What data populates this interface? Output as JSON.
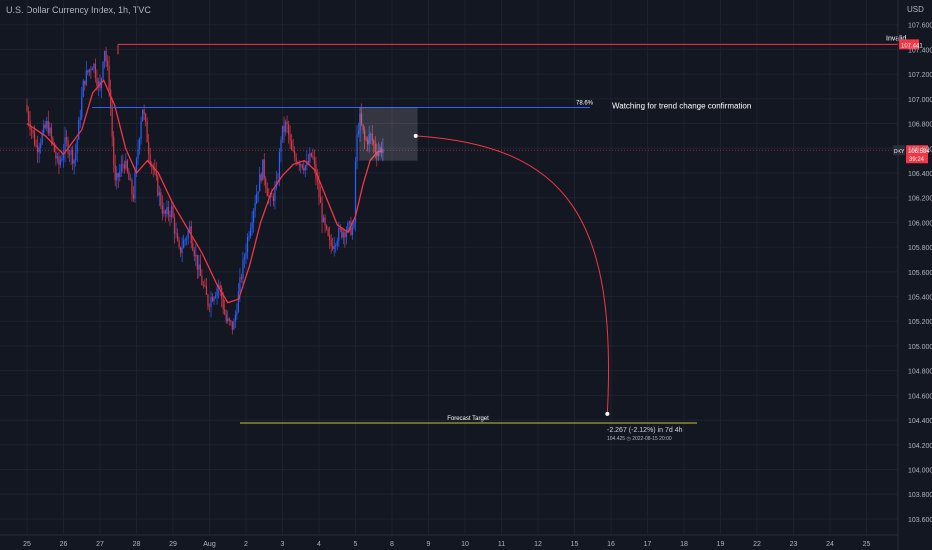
{
  "symbol_header": "U.S. Dollar Currency Index, 1h, TVC",
  "currency": "USD",
  "colors": {
    "background": "#131722",
    "grid": "#1e222d",
    "candle_up": "#2962ff",
    "candle_down": "#d93849",
    "ma_line": "#f23645",
    "fib_line": "#2962ff",
    "invalid_line": "#f23645",
    "target_line": "#c4c43a",
    "price_badge": "#f23645"
  },
  "chart_data": {
    "type": "candlestick",
    "title": "",
    "xlabel": "",
    "ylabel": "",
    "ylim": [
      103.47,
      107.8
    ],
    "y_ticks": [
      "103.600",
      "103.800",
      "104.000",
      "104.200",
      "104.400",
      "104.600",
      "104.800",
      "105.000",
      "105.200",
      "105.400",
      "105.600",
      "105.800",
      "106.000",
      "106.200",
      "106.400",
      "106.600",
      "106.800",
      "107.000",
      "107.200",
      "107.400",
      "107.600"
    ],
    "x_ticks": [
      "25",
      "26",
      "27",
      "28",
      "29",
      "Aug",
      "2",
      "3",
      "4",
      "5",
      "8",
      "9",
      "10",
      "11",
      "12",
      "15",
      "16",
      "17",
      "18",
      "19",
      "22",
      "23",
      "24",
      "25"
    ],
    "price_path": [
      {
        "x": 0,
        "y": 106.95
      },
      {
        "x": 0.3,
        "y": 106.6
      },
      {
        "x": 0.6,
        "y": 106.8
      },
      {
        "x": 0.9,
        "y": 106.45
      },
      {
        "x": 1.1,
        "y": 106.65
      },
      {
        "x": 1.35,
        "y": 106.5
      },
      {
        "x": 1.6,
        "y": 107.15
      },
      {
        "x": 1.85,
        "y": 107.3
      },
      {
        "x": 2.05,
        "y": 107.05
      },
      {
        "x": 2.15,
        "y": 107.45
      },
      {
        "x": 2.3,
        "y": 107.1
      },
      {
        "x": 2.45,
        "y": 106.3
      },
      {
        "x": 2.7,
        "y": 106.5
      },
      {
        "x": 2.95,
        "y": 106.2
      },
      {
        "x": 3.2,
        "y": 106.95
      },
      {
        "x": 3.4,
        "y": 106.55
      },
      {
        "x": 3.6,
        "y": 106.3
      },
      {
        "x": 3.8,
        "y": 106.05
      },
      {
        "x": 4.0,
        "y": 106.1
      },
      {
        "x": 4.2,
        "y": 105.75
      },
      {
        "x": 4.5,
        "y": 105.95
      },
      {
        "x": 4.75,
        "y": 105.6
      },
      {
        "x": 5.0,
        "y": 105.35
      },
      {
        "x": 5.3,
        "y": 105.5
      },
      {
        "x": 5.5,
        "y": 105.2
      },
      {
        "x": 5.7,
        "y": 105.15
      },
      {
        "x": 5.9,
        "y": 105.55
      },
      {
        "x": 6.1,
        "y": 105.9
      },
      {
        "x": 6.3,
        "y": 106.2
      },
      {
        "x": 6.5,
        "y": 106.45
      },
      {
        "x": 6.7,
        "y": 106.15
      },
      {
        "x": 6.9,
        "y": 106.3
      },
      {
        "x": 7.0,
        "y": 106.7
      },
      {
        "x": 7.15,
        "y": 106.8
      },
      {
        "x": 7.3,
        "y": 106.55
      },
      {
        "x": 7.5,
        "y": 106.5
      },
      {
        "x": 7.7,
        "y": 106.45
      },
      {
        "x": 7.85,
        "y": 106.55
      },
      {
        "x": 8.0,
        "y": 106.3
      },
      {
        "x": 8.15,
        "y": 106.0
      },
      {
        "x": 8.35,
        "y": 105.8
      },
      {
        "x": 8.55,
        "y": 105.9
      },
      {
        "x": 8.8,
        "y": 105.95
      },
      {
        "x": 9.0,
        "y": 105.95
      },
      {
        "x": 9.05,
        "y": 106.6
      },
      {
        "x": 9.15,
        "y": 106.85
      },
      {
        "x": 9.3,
        "y": 106.65
      },
      {
        "x": 9.45,
        "y": 106.7
      },
      {
        "x": 9.6,
        "y": 106.58
      },
      {
        "x": 9.75,
        "y": 106.6
      }
    ],
    "moving_average": [
      {
        "x": 0,
        "y": 106.8
      },
      {
        "x": 0.5,
        "y": 106.7
      },
      {
        "x": 1.0,
        "y": 106.55
      },
      {
        "x": 1.5,
        "y": 106.75
      },
      {
        "x": 1.8,
        "y": 107.05
      },
      {
        "x": 2.1,
        "y": 107.15
      },
      {
        "x": 2.4,
        "y": 106.95
      },
      {
        "x": 2.7,
        "y": 106.6
      },
      {
        "x": 3.0,
        "y": 106.4
      },
      {
        "x": 3.3,
        "y": 106.5
      },
      {
        "x": 3.6,
        "y": 106.4
      },
      {
        "x": 4.0,
        "y": 106.15
      },
      {
        "x": 4.4,
        "y": 105.95
      },
      {
        "x": 4.8,
        "y": 105.75
      },
      {
        "x": 5.2,
        "y": 105.5
      },
      {
        "x": 5.5,
        "y": 105.35
      },
      {
        "x": 5.8,
        "y": 105.38
      },
      {
        "x": 6.1,
        "y": 105.65
      },
      {
        "x": 6.4,
        "y": 106.0
      },
      {
        "x": 6.7,
        "y": 106.25
      },
      {
        "x": 7.0,
        "y": 106.38
      },
      {
        "x": 7.3,
        "y": 106.47
      },
      {
        "x": 7.6,
        "y": 106.5
      },
      {
        "x": 7.9,
        "y": 106.42
      },
      {
        "x": 8.2,
        "y": 106.2
      },
      {
        "x": 8.5,
        "y": 105.98
      },
      {
        "x": 8.8,
        "y": 105.92
      },
      {
        "x": 9.0,
        "y": 106.05
      },
      {
        "x": 9.2,
        "y": 106.3
      },
      {
        "x": 9.4,
        "y": 106.5
      },
      {
        "x": 9.6,
        "y": 106.57
      },
      {
        "x": 9.75,
        "y": 106.58
      }
    ],
    "annotations": {
      "invalid_label": "Invalid",
      "invalid_price": "107.441",
      "fib_label": "78.6%",
      "fib_price": 106.93,
      "watching_note": "Watching for trend change confirmation",
      "current_symbol": "DXY",
      "current_price": "106.584",
      "countdown": "39:24",
      "target_label": "Forecast Target",
      "target_price": 104.425,
      "forecast_change": "-2.267 (-2.12%) in 7d 4h",
      "forecast_detail": "104.425 ◷ 2022-08-15 20:00",
      "forecast_start": {
        "x": 10.65,
        "y": 106.7
      },
      "forecast_end": {
        "x": 15.9,
        "y": 104.45
      },
      "box": {
        "x0": 9.1,
        "x1": 10.7,
        "y0": 106.5,
        "y1": 106.93
      }
    }
  }
}
